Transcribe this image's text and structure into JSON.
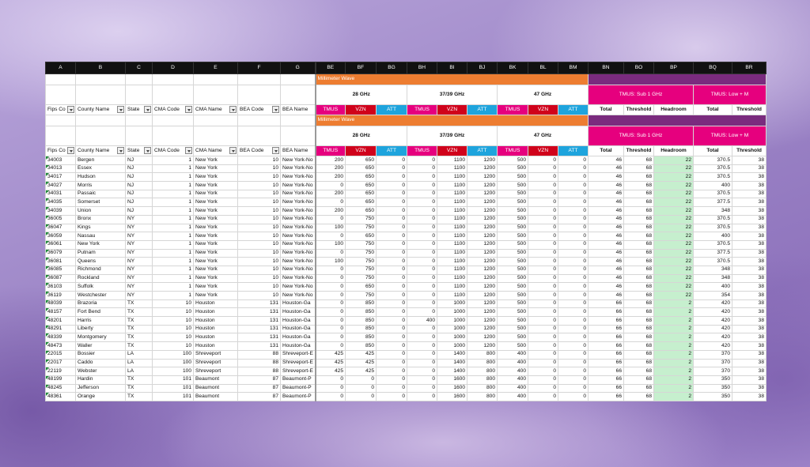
{
  "column_letters": [
    "A",
    "B",
    "C",
    "D",
    "E",
    "F",
    "G",
    "BE",
    "BF",
    "BG",
    "BH",
    "BI",
    "BJ",
    "BK",
    "BL",
    "BM",
    "BN",
    "BO",
    "BP",
    "BQ",
    "BR"
  ],
  "header": {
    "group_mmw": "Millimeter Wave",
    "bands": [
      "28 GHz",
      "37/39 GHz",
      "47 GHz"
    ],
    "carriers": [
      "TMUS",
      "VZN",
      "ATT"
    ],
    "tmus_sub1": "TMUS: Sub 1 GHz",
    "tmus_low": "TMUS: Low + M",
    "fields": [
      "Fips Co",
      "County Name",
      "State",
      "CMA Code",
      "CMA Name",
      "BEA Code",
      "BEA Name"
    ],
    "metrics": [
      "Total",
      "Threshold",
      "Headroom",
      "Total",
      "Threshold"
    ]
  },
  "rows": [
    [
      34003,
      "Bergen",
      "NJ",
      1,
      "New York",
      10,
      "New York-No",
      200,
      650,
      0,
      0,
      1100,
      1200,
      500,
      0,
      0,
      46,
      68,
      22,
      370.5,
      38
    ],
    [
      34013,
      "Essex",
      "NJ",
      1,
      "New York",
      10,
      "New York-No",
      200,
      650,
      0,
      0,
      1100,
      1200,
      500,
      0,
      0,
      46,
      68,
      22,
      370.5,
      38
    ],
    [
      34017,
      "Hudson",
      "NJ",
      1,
      "New York",
      10,
      "New York-No",
      200,
      650,
      0,
      0,
      1100,
      1200,
      500,
      0,
      0,
      46,
      68,
      22,
      370.5,
      38
    ],
    [
      34027,
      "Morris",
      "NJ",
      1,
      "New York",
      10,
      "New York-No",
      0,
      650,
      0,
      0,
      1100,
      1200,
      500,
      0,
      0,
      46,
      68,
      22,
      400,
      38
    ],
    [
      34031,
      "Passaic",
      "NJ",
      1,
      "New York",
      10,
      "New York-No",
      200,
      650,
      0,
      0,
      1100,
      1200,
      500,
      0,
      0,
      46,
      68,
      22,
      370.5,
      38
    ],
    [
      34035,
      "Somerset",
      "NJ",
      1,
      "New York",
      10,
      "New York-No",
      0,
      650,
      0,
      0,
      1100,
      1200,
      500,
      0,
      0,
      46,
      68,
      22,
      377.5,
      38
    ],
    [
      34039,
      "Union",
      "NJ",
      1,
      "New York",
      10,
      "New York-No",
      200,
      650,
      0,
      0,
      1100,
      1200,
      500,
      0,
      0,
      46,
      68,
      22,
      348,
      38
    ],
    [
      36005,
      "Bronx",
      "NY",
      1,
      "New York",
      10,
      "New York-No",
      0,
      750,
      0,
      0,
      1100,
      1200,
      500,
      0,
      0,
      46,
      68,
      22,
      370.5,
      38
    ],
    [
      36047,
      "Kings",
      "NY",
      1,
      "New York",
      10,
      "New York-No",
      100,
      750,
      0,
      0,
      1100,
      1200,
      500,
      0,
      0,
      46,
      68,
      22,
      370.5,
      38
    ],
    [
      36059,
      "Nassau",
      "NY",
      1,
      "New York",
      10,
      "New York-No",
      0,
      650,
      0,
      0,
      1100,
      1200,
      500,
      0,
      0,
      46,
      68,
      22,
      400,
      38
    ],
    [
      36061,
      "New York",
      "NY",
      1,
      "New York",
      10,
      "New York-No",
      100,
      750,
      0,
      0,
      1100,
      1200,
      500,
      0,
      0,
      46,
      68,
      22,
      370.5,
      38
    ],
    [
      36079,
      "Putnam",
      "NY",
      1,
      "New York",
      10,
      "New York-No",
      0,
      750,
      0,
      0,
      1100,
      1200,
      500,
      0,
      0,
      46,
      68,
      22,
      377.5,
      38
    ],
    [
      36081,
      "Queens",
      "NY",
      1,
      "New York",
      10,
      "New York-No",
      100,
      750,
      0,
      0,
      1100,
      1200,
      500,
      0,
      0,
      46,
      68,
      22,
      370.5,
      38
    ],
    [
      36085,
      "Richmond",
      "NY",
      1,
      "New York",
      10,
      "New York-No",
      0,
      750,
      0,
      0,
      1100,
      1200,
      500,
      0,
      0,
      46,
      68,
      22,
      348,
      38
    ],
    [
      36087,
      "Rockland",
      "NY",
      1,
      "New York",
      10,
      "New York-No",
      0,
      750,
      0,
      0,
      1100,
      1200,
      500,
      0,
      0,
      46,
      68,
      22,
      348,
      38
    ],
    [
      36103,
      "Suffolk",
      "NY",
      1,
      "New York",
      10,
      "New York-No",
      0,
      650,
      0,
      0,
      1100,
      1200,
      500,
      0,
      0,
      46,
      68,
      22,
      400,
      38
    ],
    [
      36119,
      "Westchester",
      "NY",
      1,
      "New York",
      10,
      "New York-No",
      0,
      750,
      0,
      0,
      1100,
      1200,
      500,
      0,
      0,
      46,
      68,
      22,
      354,
      38
    ],
    [
      48039,
      "Brazoria",
      "TX",
      10,
      "Houston",
      131,
      "Houston-Ga",
      0,
      850,
      0,
      0,
      1000,
      1200,
      500,
      0,
      0,
      66,
      68,
      2,
      420,
      38
    ],
    [
      48157,
      "Fort Bend",
      "TX",
      10,
      "Houston",
      131,
      "Houston-Ga",
      0,
      850,
      0,
      0,
      1000,
      1200,
      500,
      0,
      0,
      66,
      68,
      2,
      420,
      38
    ],
    [
      48201,
      "Harris",
      "TX",
      10,
      "Houston",
      131,
      "Houston-Ga",
      0,
      850,
      0,
      400,
      1000,
      1200,
      500,
      0,
      0,
      66,
      68,
      2,
      420,
      38
    ],
    [
      48291,
      "Liberty",
      "TX",
      10,
      "Houston",
      131,
      "Houston-Ga",
      0,
      850,
      0,
      0,
      1000,
      1200,
      500,
      0,
      0,
      66,
      68,
      2,
      420,
      38
    ],
    [
      48339,
      "Montgomery",
      "TX",
      10,
      "Houston",
      131,
      "Houston-Ga",
      0,
      850,
      0,
      0,
      1000,
      1200,
      500,
      0,
      0,
      66,
      68,
      2,
      420,
      38
    ],
    [
      48473,
      "Waller",
      "TX",
      10,
      "Houston",
      131,
      "Houston-Ga",
      0,
      850,
      0,
      0,
      1000,
      1200,
      500,
      0,
      0,
      66,
      68,
      2,
      420,
      38
    ],
    [
      22015,
      "Bossier",
      "LA",
      100,
      "Shreveport",
      88,
      "Shreveport-E",
      425,
      425,
      0,
      0,
      1400,
      800,
      400,
      0,
      0,
      66,
      68,
      2,
      370,
      38
    ],
    [
      22017,
      "Caddo",
      "LA",
      100,
      "Shreveport",
      88,
      "Shreveport-E",
      425,
      425,
      0,
      0,
      1400,
      800,
      400,
      0,
      0,
      66,
      68,
      2,
      370,
      38
    ],
    [
      22119,
      "Webster",
      "LA",
      100,
      "Shreveport",
      88,
      "Shreveport-E",
      425,
      425,
      0,
      0,
      1400,
      800,
      400,
      0,
      0,
      66,
      68,
      2,
      370,
      38
    ],
    [
      48199,
      "Hardin",
      "TX",
      101,
      "Beaumont",
      87,
      "Beaumont-P",
      0,
      0,
      0,
      0,
      1600,
      800,
      400,
      0,
      0,
      66,
      68,
      2,
      350,
      38
    ],
    [
      48245,
      "Jefferson",
      "TX",
      101,
      "Beaumont",
      87,
      "Beaumont-P",
      0,
      0,
      0,
      0,
      1600,
      800,
      400,
      0,
      0,
      66,
      68,
      2,
      350,
      38
    ],
    [
      48361,
      "Orange",
      "TX",
      101,
      "Beaumont",
      87,
      "Beaumont-P",
      0,
      0,
      0,
      0,
      1600,
      800,
      400,
      0,
      0,
      66,
      68,
      2,
      350,
      38
    ]
  ]
}
